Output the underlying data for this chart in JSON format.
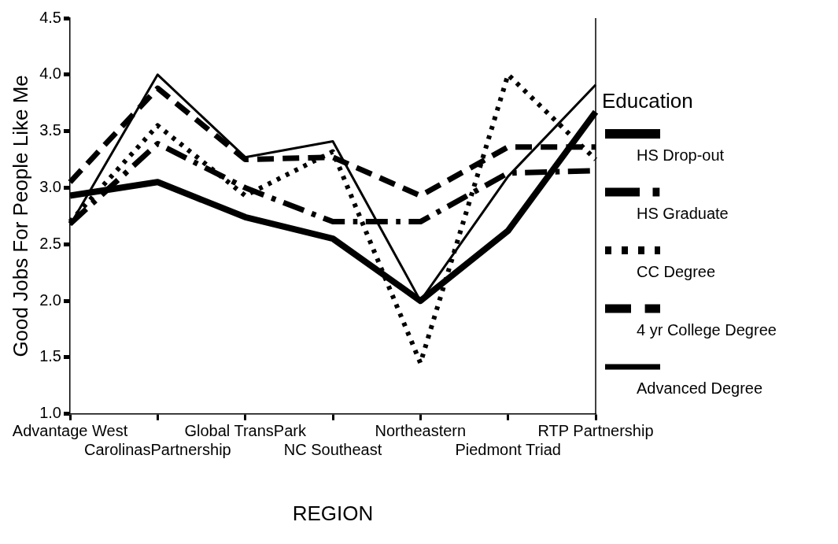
{
  "chart_data": {
    "type": "line",
    "xlabel": "REGION",
    "ylabel": "Good Jobs For People Like Me",
    "legend_title": "Education",
    "legend": "right",
    "grid": false,
    "marker": "none",
    "categories": [
      "Advantage West",
      "CarolinasPartnership",
      "Global TransPark",
      "NC Southeast",
      "Northeastern",
      "Piedmont Triad",
      "RTP Partnership"
    ],
    "ylim": [
      1.0,
      4.5
    ],
    "yticks": [
      {
        "value": 1,
        "label": "1.0"
      },
      {
        "value": 1.5,
        "label": "1.5"
      },
      {
        "value": 2,
        "label": "2.0"
      },
      {
        "value": 2.5,
        "label": "2.5"
      },
      {
        "value": 3,
        "label": "3.0"
      },
      {
        "value": 3.5,
        "label": "3.5"
      },
      {
        "value": 4,
        "label": "4.0"
      },
      {
        "value": 4.5,
        "label": "4.5"
      }
    ],
    "series": [
      {
        "name": "HS Drop-out",
        "color": "#000000",
        "line_style": "solid",
        "values": [
          2.93,
          3.05,
          2.74,
          2.55,
          2.0,
          2.62,
          3.67
        ]
      },
      {
        "name": "HS Graduate",
        "color": "#000000",
        "line_style": "dashdot",
        "values": [
          2.68,
          3.39,
          3.0,
          2.7,
          2.7,
          3.13,
          3.15
        ]
      },
      {
        "name": "CC Degree",
        "color": "#000000",
        "line_style": "dotted",
        "values": [
          2.7,
          3.55,
          2.93,
          3.32,
          1.45,
          4.0,
          3.25
        ]
      },
      {
        "name": "4 yr College Degree",
        "color": "#000000",
        "line_style": "dashed",
        "values": [
          3.05,
          3.88,
          3.25,
          3.27,
          2.93,
          3.36,
          3.36
        ]
      },
      {
        "name": "Advanced Degree",
        "color": "#000000",
        "line_style": "solid",
        "values": [
          2.67,
          4.0,
          3.27,
          3.41,
          2.0,
          3.1,
          3.91
        ]
      }
    ]
  }
}
